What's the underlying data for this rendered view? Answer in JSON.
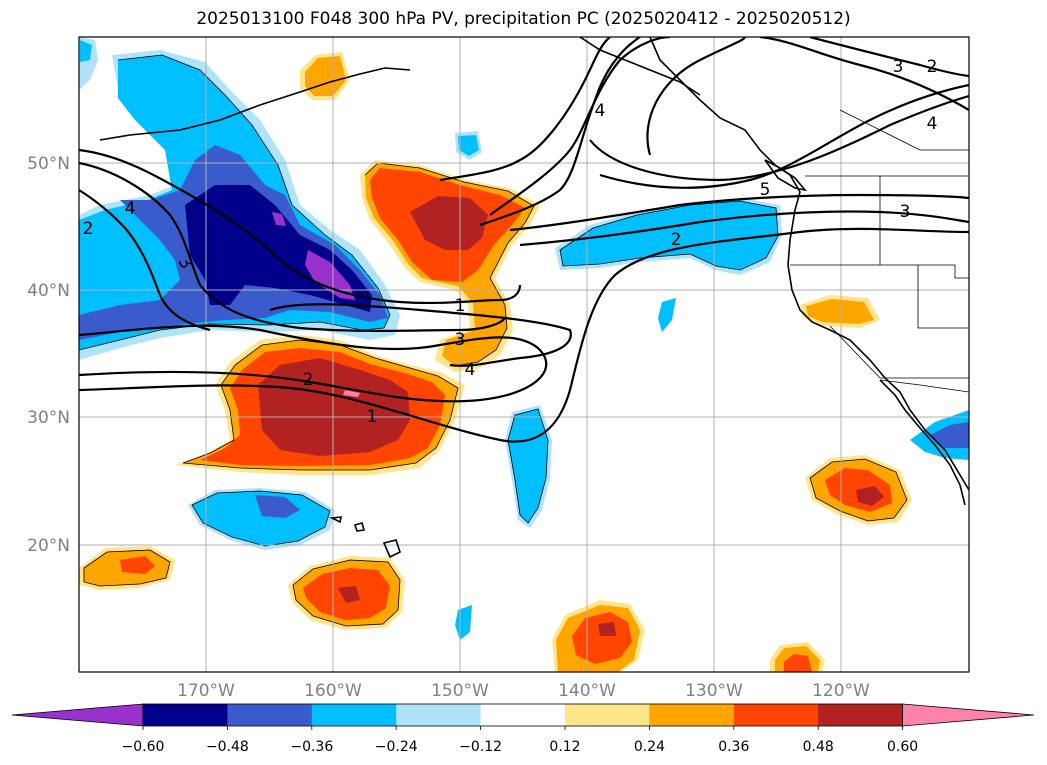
{
  "title": "2025013100 F048 300 hPa PV, precipitation PC (2025020412 - 2025020512)",
  "longitude_labels": [
    "170°W",
    "160°W",
    "150°W",
    "140°W",
    "130°W",
    "120°W"
  ],
  "latitude_labels": [
    "50°N",
    "40°N",
    "30°N",
    "20°N"
  ],
  "contour_labels": [
    "4",
    "3",
    "2",
    "4",
    "5",
    "3",
    "2",
    "1",
    "3",
    "4",
    "2",
    "1",
    "4",
    "3"
  ],
  "colorbar": {
    "ticks": [
      "−0.60",
      "−0.48",
      "−0.36",
      "−0.24",
      "−0.12",
      "0.12",
      "0.24",
      "0.36",
      "0.48",
      "0.60"
    ],
    "colors": [
      "#9932cc",
      "#00008b",
      "#3a5bcc",
      "#00bfff",
      "#aee3fa",
      "#ffffff",
      "#ffe58a",
      "#ffa500",
      "#ff4500",
      "#b22222",
      "#ff82ab"
    ]
  },
  "palette": {
    "purple": "#9932cc",
    "navy": "#00008b",
    "royal_blue": "#3a5bcc",
    "deep_sky": "#00bfff",
    "light_blue": "#aee3fa",
    "light_yellow": "#ffe58a",
    "orange": "#ffa500",
    "orange_red": "#ff4500",
    "firebrick": "#b22222",
    "pink": "#ff82ab"
  }
}
